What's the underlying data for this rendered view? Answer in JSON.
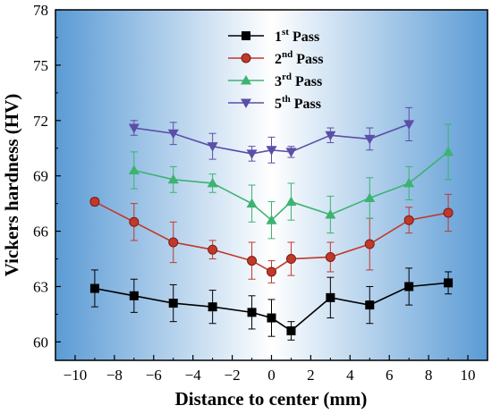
{
  "chart_data": {
    "type": "line",
    "xlabel": "Distance to center (mm)",
    "ylabel": "Vickers hardness (HV)",
    "xlim": [
      -11,
      11
    ],
    "ylim": [
      59,
      78
    ],
    "xticks": [
      "−10",
      "−8",
      "−6",
      "−4",
      "−2",
      "0",
      "2",
      "4",
      "6",
      "8",
      "10"
    ],
    "xtick_values": [
      -10,
      -8,
      -6,
      -4,
      -2,
      0,
      2,
      4,
      6,
      8,
      10
    ],
    "yticks": [
      "60",
      "63",
      "66",
      "69",
      "72",
      "75",
      "78"
    ],
    "ytick_values": [
      60,
      63,
      66,
      69,
      72,
      75,
      78
    ],
    "grid": false,
    "legend_position": "top-center",
    "series": [
      {
        "name": "1st Pass",
        "name_main": "1",
        "name_sup": "st",
        "name_tail": " Pass",
        "color": "#000000",
        "marker": "square",
        "x": [
          -9,
          -7,
          -5,
          -3,
          -1,
          0,
          1,
          3,
          5,
          7,
          9
        ],
        "y": [
          62.9,
          62.5,
          62.1,
          61.9,
          61.6,
          61.3,
          60.6,
          62.4,
          62.0,
          63.0,
          63.2
        ],
        "err": [
          1.0,
          0.9,
          1.0,
          0.9,
          0.9,
          1.0,
          0.5,
          1.1,
          1.0,
          1.0,
          0.6
        ]
      },
      {
        "name": "2nd Pass",
        "name_main": "2",
        "name_sup": "nd",
        "name_tail": " Pass",
        "color": "#c0392b",
        "marker": "circle",
        "x": [
          -9,
          -7,
          -5,
          -3,
          -1,
          0,
          1,
          3,
          5,
          7,
          9
        ],
        "y": [
          67.6,
          66.5,
          65.4,
          65.0,
          64.4,
          63.8,
          64.5,
          64.6,
          65.3,
          66.6,
          67.0
        ],
        "err": [
          0.2,
          1.0,
          1.1,
          0.5,
          1.0,
          0.6,
          0.9,
          0.8,
          1.4,
          0.7,
          1.0
        ]
      },
      {
        "name": "3rd Pass",
        "name_main": "3",
        "name_sup": "rd",
        "name_tail": " Pass",
        "color": "#3cb371",
        "marker": "triangle-up",
        "x": [
          -7,
          -5,
          -3,
          -1,
          0,
          1,
          3,
          5,
          7,
          9
        ],
        "y": [
          69.3,
          68.8,
          68.6,
          67.5,
          66.6,
          67.6,
          66.9,
          67.8,
          68.6,
          70.3
        ],
        "err": [
          1.0,
          0.7,
          0.5,
          1.0,
          1.0,
          1.0,
          1.0,
          1.1,
          0.9,
          1.5
        ]
      },
      {
        "name": "5th Pass",
        "name_main": "5",
        "name_sup": "th",
        "name_tail": " Pass",
        "color": "#5b4ea8",
        "marker": "triangle-down",
        "x": [
          -7,
          -5,
          -3,
          -1,
          0,
          1,
          3,
          5,
          7
        ],
        "y": [
          71.6,
          71.3,
          70.6,
          70.2,
          70.4,
          70.3,
          71.2,
          71.0,
          71.8
        ],
        "err": [
          0.4,
          0.6,
          0.7,
          0.4,
          0.7,
          0.3,
          0.4,
          0.6,
          0.9
        ]
      }
    ]
  }
}
